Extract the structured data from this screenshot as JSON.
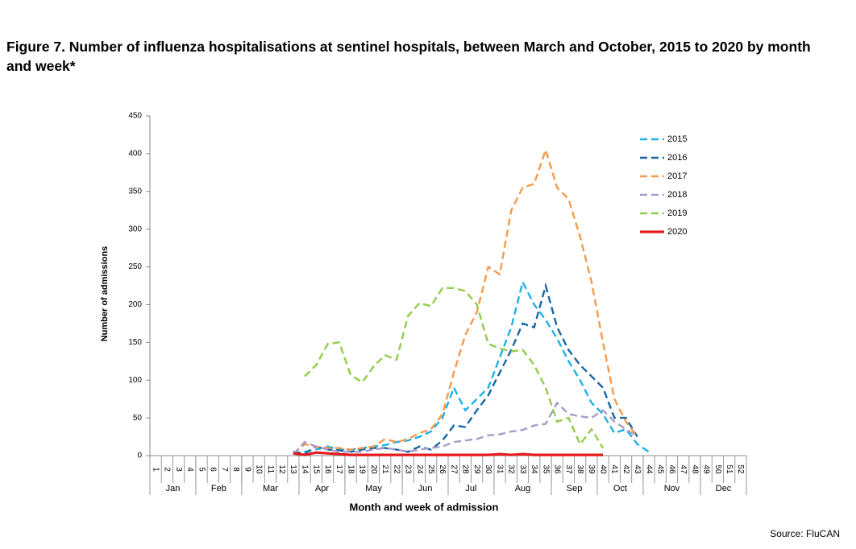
{
  "chart_data": {
    "type": "line",
    "title": "Figure 7. Number of influenza hospitalisations at sentinel hospitals, between March and October, 2015 to 2020 by month and week*",
    "x_label": "Month and week of admission",
    "y_label": "Number of admissions",
    "source": "Source: FluCAN",
    "x": [
      1,
      2,
      3,
      4,
      5,
      6,
      7,
      8,
      9,
      10,
      11,
      12,
      13,
      14,
      15,
      16,
      17,
      18,
      19,
      20,
      21,
      22,
      23,
      24,
      25,
      26,
      27,
      28,
      29,
      30,
      31,
      32,
      33,
      34,
      35,
      36,
      37,
      38,
      39,
      40,
      41,
      42,
      43,
      44,
      45,
      46,
      47,
      48,
      49,
      50,
      51,
      52
    ],
    "xlim": [
      0.5,
      52.5
    ],
    "months": [
      {
        "label": "Jan",
        "first_week": 1,
        "last_week": 4
      },
      {
        "label": "Feb",
        "first_week": 5,
        "last_week": 8
      },
      {
        "label": "Mar",
        "first_week": 9,
        "last_week": 13
      },
      {
        "label": "Apr",
        "first_week": 14,
        "last_week": 17
      },
      {
        "label": "May",
        "first_week": 18,
        "last_week": 22
      },
      {
        "label": "Jun",
        "first_week": 23,
        "last_week": 26
      },
      {
        "label": "Jul",
        "first_week": 27,
        "last_week": 30
      },
      {
        "label": "Aug",
        "first_week": 31,
        "last_week": 35
      },
      {
        "label": "Sep",
        "first_week": 36,
        "last_week": 39
      },
      {
        "label": "Oct",
        "first_week": 40,
        "last_week": 43
      },
      {
        "label": "Nov",
        "first_week": 44,
        "last_week": 48
      },
      {
        "label": "Dec",
        "first_week": 49,
        "last_week": 52
      }
    ],
    "ylim": [
      0,
      450
    ],
    "yticks": [
      0,
      50,
      100,
      150,
      200,
      250,
      300,
      350,
      400,
      450
    ],
    "legend": "upper right",
    "series": [
      {
        "name": "2015",
        "color": "#1fb0e6",
        "dashed": true,
        "values": [
          null,
          null,
          null,
          null,
          null,
          null,
          null,
          null,
          null,
          null,
          null,
          null,
          2,
          5,
          8,
          12,
          8,
          8,
          10,
          12,
          14,
          18,
          20,
          25,
          32,
          50,
          90,
          60,
          75,
          90,
          130,
          170,
          230,
          200,
          180,
          155,
          125,
          100,
          70,
          55,
          30,
          35,
          15,
          5,
          null,
          null,
          null,
          null,
          null,
          null,
          null,
          null
        ]
      },
      {
        "name": "2016",
        "color": "#1767a6",
        "dashed": true,
        "values": [
          null,
          null,
          null,
          null,
          null,
          null,
          null,
          null,
          null,
          null,
          null,
          null,
          5,
          3,
          12,
          8,
          7,
          5,
          8,
          10,
          10,
          8,
          5,
          12,
          8,
          20,
          40,
          38,
          60,
          80,
          110,
          140,
          175,
          170,
          225,
          170,
          140,
          120,
          105,
          90,
          50,
          50,
          25,
          null,
          null,
          null,
          null,
          null,
          null,
          null,
          null,
          null
        ]
      },
      {
        "name": "2017",
        "color": "#f59a4a",
        "dashed": true,
        "values": [
          null,
          null,
          null,
          null,
          null,
          null,
          null,
          null,
          null,
          null,
          null,
          null,
          3,
          15,
          12,
          10,
          10,
          8,
          10,
          12,
          22,
          18,
          22,
          30,
          35,
          55,
          110,
          160,
          190,
          250,
          240,
          325,
          355,
          360,
          405,
          355,
          340,
          290,
          230,
          150,
          75,
          45,
          25,
          null,
          null,
          null,
          null,
          null,
          null,
          null,
          null,
          null
        ]
      },
      {
        "name": "2018",
        "color": "#a99bc9",
        "dashed": true,
        "values": [
          null,
          null,
          null,
          null,
          null,
          null,
          null,
          null,
          null,
          null,
          null,
          null,
          2,
          18,
          12,
          8,
          5,
          5,
          5,
          8,
          10,
          8,
          5,
          8,
          10,
          12,
          18,
          20,
          22,
          27,
          28,
          32,
          34,
          40,
          42,
          70,
          55,
          52,
          50,
          60,
          45,
          35,
          25,
          null,
          null,
          null,
          null,
          null,
          null,
          null,
          null,
          null
        ]
      },
      {
        "name": "2019",
        "color": "#92cc4a",
        "dashed": true,
        "values": [
          null,
          null,
          null,
          null,
          null,
          null,
          null,
          null,
          null,
          null,
          null,
          null,
          null,
          105,
          120,
          148,
          150,
          107,
          97,
          118,
          133,
          127,
          185,
          202,
          198,
          222,
          222,
          218,
          200,
          148,
          142,
          138,
          140,
          120,
          90,
          45,
          50,
          15,
          35,
          10,
          null,
          null,
          null,
          null,
          null,
          null,
          null,
          null,
          null,
          null,
          null,
          null
        ]
      },
      {
        "name": "2020",
        "color": "#e41a1c",
        "dashed": false,
        "values": [
          null,
          null,
          null,
          null,
          null,
          null,
          null,
          null,
          null,
          null,
          null,
          null,
          3,
          1,
          4,
          3,
          2,
          1,
          1,
          1,
          1,
          1,
          1,
          1,
          1,
          1,
          1,
          1,
          1,
          1,
          2,
          1,
          2,
          1,
          1,
          1,
          1,
          1,
          1,
          1,
          null,
          null,
          null,
          null,
          null,
          null,
          null,
          null,
          null,
          null,
          null,
          null
        ]
      }
    ]
  }
}
